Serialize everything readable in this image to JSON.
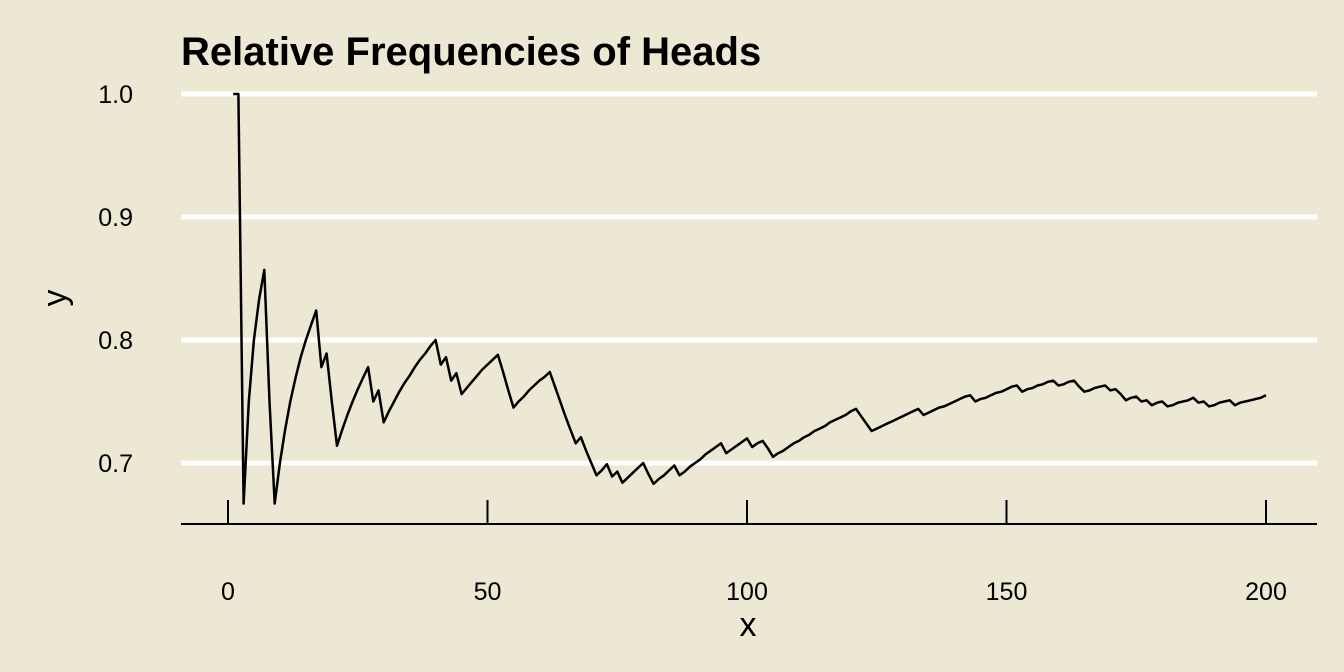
{
  "chart_data": {
    "type": "line",
    "title": "Relative Frequencies of Heads",
    "xlabel": "x",
    "ylabel": "y",
    "xlim": [
      0,
      200
    ],
    "ylim": [
      0.65,
      1.0
    ],
    "x_ticks": [
      0,
      50,
      100,
      150,
      200
    ],
    "x_tick_labels": [
      "0",
      "50",
      "100",
      "150",
      "200"
    ],
    "y_ticks": [
      0.7,
      0.8,
      0.9,
      1.0
    ],
    "y_tick_labels": [
      "0.7",
      "0.8",
      "0.9",
      "1.0"
    ],
    "grid": "horizontal",
    "colors": {
      "background": "#ECE8D4",
      "grid": "#FFFFFF",
      "line": "#000000"
    },
    "series": [
      {
        "x": [
          1,
          2,
          3,
          4,
          5,
          6,
          7,
          8,
          9,
          10,
          11,
          12,
          13,
          14,
          15,
          16,
          17,
          18,
          19,
          20,
          21,
          22,
          23,
          24,
          25,
          26,
          27,
          28,
          29,
          30,
          31,
          32,
          33,
          34,
          35,
          36,
          37,
          38,
          39,
          40,
          41,
          42,
          43,
          44,
          45,
          46,
          47,
          48,
          49,
          50,
          51,
          52,
          53,
          54,
          55,
          56,
          57,
          58,
          59,
          60,
          61,
          62,
          63,
          64,
          65,
          66,
          67,
          68,
          69,
          70,
          71,
          72,
          73,
          74,
          75,
          76,
          77,
          78,
          79,
          80,
          81,
          82,
          83,
          84,
          85,
          86,
          87,
          88,
          89,
          90,
          91,
          92,
          93,
          94,
          95,
          96,
          97,
          98,
          99,
          100,
          101,
          102,
          103,
          104,
          105,
          106,
          107,
          108,
          109,
          110,
          111,
          112,
          113,
          114,
          115,
          116,
          117,
          118,
          119,
          120,
          121,
          122,
          123,
          124,
          125,
          126,
          127,
          128,
          129,
          130,
          131,
          132,
          133,
          134,
          135,
          136,
          137,
          138,
          139,
          140,
          141,
          142,
          143,
          144,
          145,
          146,
          147,
          148,
          149,
          150,
          151,
          152,
          153,
          154,
          155,
          156,
          157,
          158,
          159,
          160,
          161,
          162,
          163,
          164,
          165,
          166,
          167,
          168,
          169,
          170,
          171,
          172,
          173,
          174,
          175,
          176,
          177,
          178,
          179,
          180,
          181,
          182,
          183,
          184,
          185,
          186,
          187,
          188,
          189,
          190,
          191,
          192,
          193,
          194,
          195,
          196,
          197,
          198,
          199,
          200
        ],
        "y": [
          1.0,
          1.0,
          0.667,
          0.75,
          0.8,
          0.833,
          0.857,
          0.75,
          0.667,
          0.7,
          0.727,
          0.75,
          0.769,
          0.786,
          0.8,
          0.812,
          0.824,
          0.778,
          0.789,
          0.75,
          0.714,
          0.727,
          0.739,
          0.75,
          0.76,
          0.769,
          0.778,
          0.75,
          0.759,
          0.733,
          0.742,
          0.75,
          0.758,
          0.765,
          0.771,
          0.778,
          0.784,
          0.789,
          0.795,
          0.8,
          0.78,
          0.786,
          0.767,
          0.773,
          0.756,
          0.761,
          0.766,
          0.771,
          0.776,
          0.78,
          0.784,
          0.788,
          0.774,
          0.759,
          0.745,
          0.75,
          0.754,
          0.759,
          0.763,
          0.767,
          0.77,
          0.774,
          0.762,
          0.75,
          0.738,
          0.727,
          0.716,
          0.721,
          0.71,
          0.7,
          0.69,
          0.694,
          0.699,
          0.689,
          0.693,
          0.684,
          0.688,
          0.692,
          0.696,
          0.7,
          0.691,
          0.683,
          0.687,
          0.69,
          0.694,
          0.698,
          0.69,
          0.693,
          0.697,
          0.7,
          0.703,
          0.707,
          0.71,
          0.713,
          0.716,
          0.708,
          0.711,
          0.714,
          0.717,
          0.72,
          0.713,
          0.716,
          0.718,
          0.712,
          0.705,
          0.708,
          0.71,
          0.713,
          0.716,
          0.718,
          0.721,
          0.723,
          0.726,
          0.728,
          0.73,
          0.733,
          0.735,
          0.737,
          0.739,
          0.742,
          0.744,
          0.738,
          0.732,
          0.726,
          0.728,
          0.73,
          0.732,
          0.734,
          0.736,
          0.738,
          0.74,
          0.742,
          0.744,
          0.739,
          0.741,
          0.743,
          0.745,
          0.746,
          0.748,
          0.75,
          0.752,
          0.754,
          0.755,
          0.75,
          0.752,
          0.753,
          0.755,
          0.757,
          0.758,
          0.76,
          0.762,
          0.763,
          0.758,
          0.76,
          0.761,
          0.763,
          0.764,
          0.766,
          0.767,
          0.763,
          0.764,
          0.766,
          0.767,
          0.762,
          0.758,
          0.759,
          0.761,
          0.762,
          0.763,
          0.759,
          0.76,
          0.756,
          0.751,
          0.753,
          0.754,
          0.75,
          0.751,
          0.747,
          0.749,
          0.75,
          0.746,
          0.747,
          0.749,
          0.75,
          0.751,
          0.753,
          0.749,
          0.75,
          0.746,
          0.747,
          0.749,
          0.75,
          0.751,
          0.747,
          0.749,
          0.75,
          0.751,
          0.752,
          0.753,
          0.755
        ]
      }
    ]
  }
}
